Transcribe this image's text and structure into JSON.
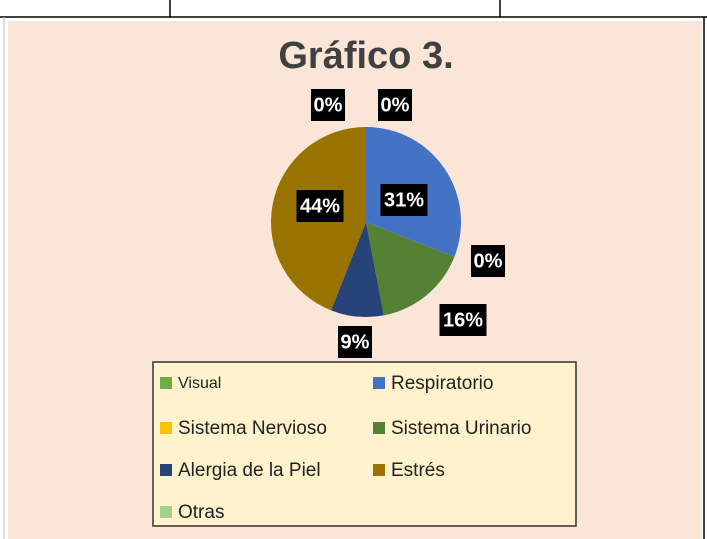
{
  "chart_data": {
    "type": "pie",
    "title": "Gráfico 3.",
    "categories": [
      "Visual",
      "Respiratorio",
      "Sistema Nervioso",
      "Sistema Urinario",
      "Alergia de la Piel",
      "Estrés",
      "Otras"
    ],
    "values": [
      0,
      31,
      0,
      16,
      9,
      44,
      0
    ],
    "value_labels": [
      "0%",
      "31%",
      "0%",
      "16%",
      "9%",
      "44%",
      "0%"
    ],
    "colors": [
      "#70AD47",
      "#4472C4",
      "#FFC000",
      "#548235",
      "#264478",
      "#997300",
      "#A9D18E"
    ],
    "legend": "bottom"
  }
}
